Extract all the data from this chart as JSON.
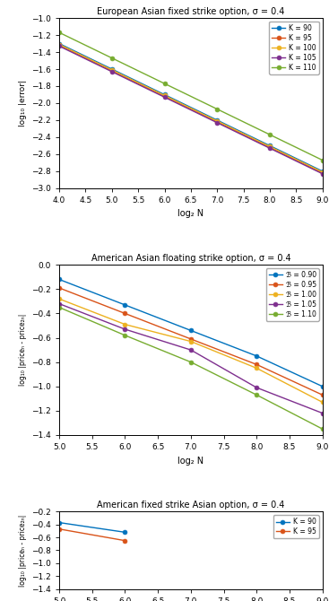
{
  "plot1": {
    "title": "European Asian fixed strike option, σ = 0.4",
    "xlabel": "log₂ N",
    "ylabel": "log₁₀ |error|",
    "xlim": [
      4,
      9
    ],
    "ylim": [
      -3,
      -1
    ],
    "xticks": [
      4,
      4.5,
      5,
      5.5,
      6,
      6.5,
      7,
      7.5,
      8,
      8.5,
      9
    ],
    "yticks": [
      -3,
      -2.8,
      -2.6,
      -2.4,
      -2.2,
      -2,
      -1.8,
      -1.6,
      -1.4,
      -1.2,
      -1
    ],
    "series": [
      {
        "label": "K = 90",
        "color": "#0072bd",
        "marker": "o",
        "x": [
          4,
          5,
          6,
          7,
          8,
          9
        ],
        "y": [
          -1.3,
          -1.6,
          -1.9,
          -2.2,
          -2.5,
          -2.8
        ]
      },
      {
        "label": "K = 95",
        "color": "#d95319",
        "marker": "o",
        "x": [
          4,
          5,
          6,
          7,
          8,
          9
        ],
        "y": [
          -1.32,
          -1.62,
          -1.92,
          -2.22,
          -2.52,
          -2.82
        ]
      },
      {
        "label": "K = 100",
        "color": "#edb120",
        "marker": "o",
        "x": [
          4,
          5,
          6,
          7,
          8,
          9
        ],
        "y": [
          -1.31,
          -1.61,
          -1.91,
          -2.21,
          -2.51,
          -2.81
        ]
      },
      {
        "label": "K = 105",
        "color": "#7e2f8e",
        "marker": "o",
        "x": [
          4,
          5,
          6,
          7,
          8,
          9
        ],
        "y": [
          -1.33,
          -1.63,
          -1.93,
          -2.23,
          -2.53,
          -2.83
        ]
      },
      {
        "label": "K = 110",
        "color": "#77ac30",
        "marker": "o",
        "x": [
          4,
          5,
          6,
          7,
          8,
          9
        ],
        "y": [
          -1.17,
          -1.47,
          -1.77,
          -2.07,
          -2.37,
          -2.67
        ]
      }
    ]
  },
  "plot2": {
    "title": "American Asian floating strike option, σ = 0.4",
    "xlabel": "log₂ N",
    "ylabel": "log₁₀ |priceₙ - price₂ₙ|",
    "xlim": [
      5,
      9
    ],
    "ylim": [
      -1.4,
      0
    ],
    "xticks": [
      5,
      5.5,
      6,
      6.5,
      7,
      7.5,
      8,
      8.5,
      9
    ],
    "yticks": [
      -1.4,
      -1.2,
      -1.0,
      -0.8,
      -0.6,
      -0.4,
      -0.2,
      0
    ],
    "series": [
      {
        "label": "ℬ = 0.90",
        "color": "#0072bd",
        "marker": "o",
        "x": [
          5,
          6,
          7,
          8,
          9
        ],
        "y": [
          -0.12,
          -0.33,
          -0.54,
          -0.75,
          -1.0
        ]
      },
      {
        "label": "ℬ = 0.95",
        "color": "#d95319",
        "marker": "o",
        "x": [
          5,
          6,
          7,
          8,
          9
        ],
        "y": [
          -0.19,
          -0.4,
          -0.61,
          -0.82,
          -1.07
        ]
      },
      {
        "label": "ℬ = 1.00",
        "color": "#edb120",
        "marker": "o",
        "x": [
          5,
          6,
          7,
          8,
          9
        ],
        "y": [
          -0.28,
          -0.49,
          -0.63,
          -0.85,
          -1.13
        ]
      },
      {
        "label": "ℬ = 1.05",
        "color": "#7e2f8e",
        "marker": "o",
        "x": [
          5,
          6,
          7,
          8,
          9
        ],
        "y": [
          -0.32,
          -0.53,
          -0.7,
          -1.01,
          -1.22
        ]
      },
      {
        "label": "ℬ = 1.10",
        "color": "#77ac30",
        "marker": "o",
        "x": [
          5,
          6,
          7,
          8,
          9
        ],
        "y": [
          -0.35,
          -0.58,
          -0.8,
          -1.07,
          -1.35
        ]
      }
    ]
  },
  "plot3": {
    "title": "American fixed strike Asian option, σ = 0.4",
    "xlabel": "log₂ N",
    "ylabel": "log₁₀ |priceₙ - price₂ₙ|",
    "xlim": [
      5,
      9
    ],
    "ylim": [
      -1.4,
      -0.2
    ],
    "xticks": [
      5,
      5.5,
      6,
      6.5,
      7,
      7.5,
      8,
      8.5,
      9
    ],
    "yticks": [
      -1.4,
      -1.2,
      -1.0,
      -0.8,
      -0.6,
      -0.4,
      -0.2
    ],
    "series": [
      {
        "label": "K = 90",
        "color": "#0072bd",
        "marker": "o",
        "x": [
          5,
          6
        ],
        "y": [
          -0.37,
          -0.52
        ]
      },
      {
        "label": "K = 95",
        "color": "#d95319",
        "marker": "o",
        "x": [
          5,
          6
        ],
        "y": [
          -0.47,
          -0.65
        ]
      }
    ]
  },
  "background_color": "#ffffff",
  "grid_color": "#e0e0e0"
}
